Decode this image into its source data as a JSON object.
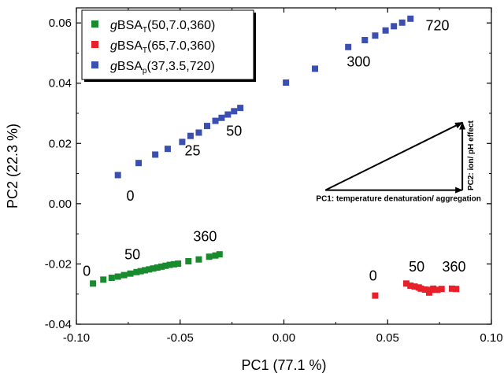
{
  "chart_data": {
    "type": "scatter",
    "title": "",
    "xlabel": "PC1 (77.1 %)",
    "ylabel": "PC2 (22.3 %)",
    "xlim": [
      -0.1,
      0.1
    ],
    "ylim": [
      -0.04,
      0.065
    ],
    "x_ticks": [
      "-0.10",
      "-0.05",
      "0.00",
      "0.05",
      "0.10"
    ],
    "y_ticks": [
      "-0.04",
      "-0.02",
      "0.00",
      "0.02",
      "0.04",
      "0.06"
    ],
    "x_tick_values": [
      -0.1,
      -0.05,
      0.0,
      0.05,
      0.1
    ],
    "y_tick_values": [
      -0.04,
      -0.02,
      0.0,
      0.02,
      0.04,
      0.06
    ],
    "grid": false,
    "legend_position": "top-left",
    "series": [
      {
        "color": "#1a8a2e",
        "legend": {
          "pre": "g",
          "main": "BSA",
          "sub": "T",
          "post": "(50,7.0,360)"
        },
        "points": [
          [
            -0.092,
            -0.0265
          ],
          [
            -0.087,
            -0.0252
          ],
          [
            -0.083,
            -0.0246
          ],
          [
            -0.08,
            -0.0242
          ],
          [
            -0.077,
            -0.0237
          ],
          [
            -0.074,
            -0.0232
          ],
          [
            -0.071,
            -0.0227
          ],
          [
            -0.069,
            -0.0224
          ],
          [
            -0.067,
            -0.0221
          ],
          [
            -0.065,
            -0.0218
          ],
          [
            -0.063,
            -0.0215
          ],
          [
            -0.061,
            -0.0212
          ],
          [
            -0.059,
            -0.0209
          ],
          [
            -0.057,
            -0.0206
          ],
          [
            -0.055,
            -0.0203
          ],
          [
            -0.053,
            -0.0201
          ],
          [
            -0.051,
            -0.0199
          ],
          [
            -0.046,
            -0.0191
          ],
          [
            -0.041,
            -0.0185
          ],
          [
            -0.036,
            -0.0176
          ],
          [
            -0.033,
            -0.0172
          ],
          [
            -0.031,
            -0.0168
          ]
        ]
      },
      {
        "color": "#e8202a",
        "legend": {
          "pre": "g",
          "main": "BSA",
          "sub": "T",
          "post": "(65,7.0,360)"
        },
        "points": [
          [
            0.044,
            -0.0305
          ],
          [
            0.059,
            -0.0265
          ],
          [
            0.061,
            -0.0272
          ],
          [
            0.063,
            -0.0275
          ],
          [
            0.065,
            -0.0278
          ],
          [
            0.066,
            -0.0282
          ],
          [
            0.068,
            -0.0285
          ],
          [
            0.07,
            -0.0295
          ],
          [
            0.071,
            -0.0286
          ],
          [
            0.072,
            -0.0282
          ],
          [
            0.074,
            -0.0286
          ],
          [
            0.076,
            -0.0283
          ],
          [
            0.081,
            -0.0282
          ],
          [
            0.083,
            -0.0283
          ]
        ]
      },
      {
        "color": "#3a4fb0",
        "legend": {
          "pre": "g",
          "main": "BSA",
          "sub": "p",
          "post": "(37,3.5,720)"
        },
        "points": [
          [
            -0.08,
            0.0095
          ],
          [
            -0.07,
            0.0135
          ],
          [
            -0.062,
            0.0163
          ],
          [
            -0.056,
            0.0182
          ],
          [
            -0.049,
            0.0205
          ],
          [
            -0.045,
            0.0225
          ],
          [
            -0.041,
            0.0236
          ],
          [
            -0.037,
            0.0258
          ],
          [
            -0.033,
            0.0275
          ],
          [
            -0.03,
            0.0285
          ],
          [
            -0.027,
            0.0296
          ],
          [
            -0.024,
            0.0307
          ],
          [
            -0.021,
            0.0318
          ],
          [
            0.001,
            0.0402
          ],
          [
            0.015,
            0.0448
          ],
          [
            0.031,
            0.052
          ],
          [
            0.039,
            0.0543
          ],
          [
            0.044,
            0.0558
          ],
          [
            0.049,
            0.0575
          ],
          [
            0.053,
            0.0589
          ],
          [
            0.057,
            0.0601
          ],
          [
            0.061,
            0.0614
          ]
        ]
      }
    ],
    "annotations": [
      {
        "text": "0",
        "x": -0.095,
        "y": -0.024
      },
      {
        "text": "50",
        "x": -0.073,
        "y": -0.0185
      },
      {
        "text": "360",
        "x": -0.038,
        "y": -0.0125
      },
      {
        "text": "0",
        "x": 0.043,
        "y": -0.0255
      },
      {
        "text": "50",
        "x": 0.064,
        "y": -0.0225
      },
      {
        "text": "360",
        "x": 0.082,
        "y": -0.0225
      },
      {
        "text": "0",
        "x": -0.074,
        "y": 0.001
      },
      {
        "text": "25",
        "x": -0.044,
        "y": 0.016
      },
      {
        "text": "50",
        "x": -0.024,
        "y": 0.0225
      },
      {
        "text": "300",
        "x": 0.036,
        "y": 0.0455
      },
      {
        "text": "720",
        "x": 0.074,
        "y": 0.0575
      }
    ],
    "effect_arrows": {
      "origin": [
        0.02,
        0.0045
      ],
      "pc1_end": [
        0.086,
        0.0045
      ],
      "pc2_end": [
        0.086,
        0.0275
      ],
      "pc1_label": "PC1: temperature denaturation/ aggregation",
      "pc2_label": "PC2: ion/ pH effect"
    }
  }
}
